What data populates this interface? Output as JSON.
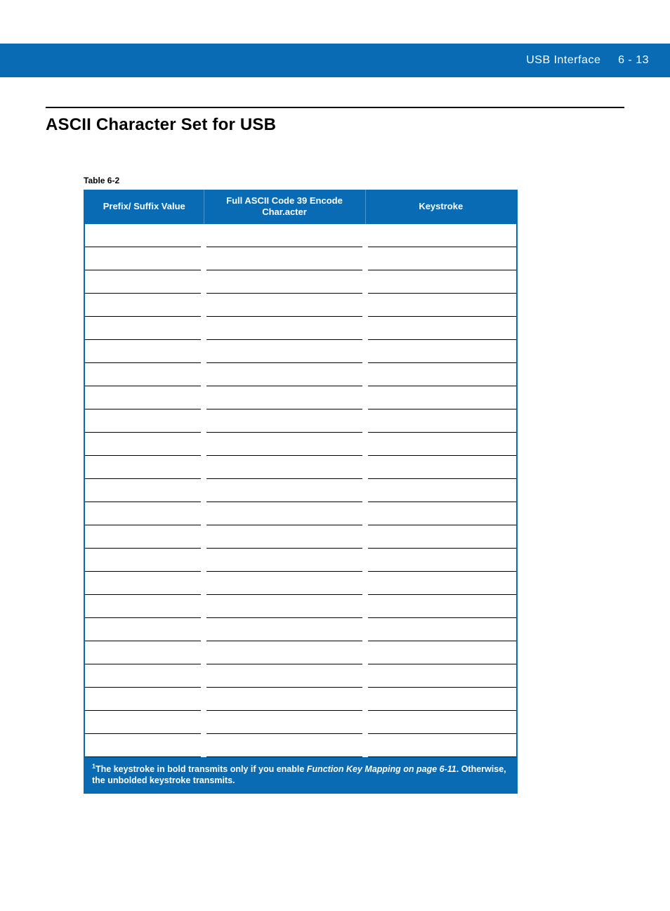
{
  "header": {
    "section_title": "USB Interface",
    "page_number": "6 - 13"
  },
  "page": {
    "title": "ASCII Character Set for USB"
  },
  "table": {
    "label": "Table 6-2",
    "columns": [
      "Prefix/ Suffix Value",
      "Full ASCII Code 39 Encode Char.acter",
      "Keystroke"
    ],
    "row_count": 23,
    "footnote_prefix": "1",
    "footnote_part1": "The keystroke in bold transmits only if you enable ",
    "footnote_italic": "Function Key Mapping on page 6-11",
    "footnote_part2": ". Otherwise, the unbolded keystroke transmits."
  },
  "colors": {
    "brand_blue": "#0a6bb5",
    "header_divider": "#4a97d0",
    "white": "#ffffff",
    "black": "#000000"
  },
  "typography": {
    "title_fontsize_pt": 18,
    "header_fontsize_pt": 12,
    "table_header_fontsize_pt": 10,
    "table_label_fontsize_pt": 9,
    "footnote_fontsize_pt": 9
  }
}
